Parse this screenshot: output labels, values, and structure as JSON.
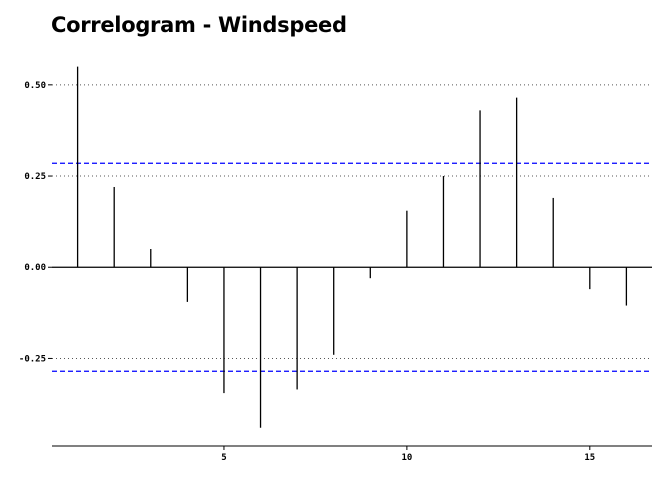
{
  "chart_data": {
    "type": "bar",
    "title": "Correlogram - Windspeed",
    "xlabel": "",
    "ylabel": "",
    "lags": [
      1,
      2,
      3,
      4,
      5,
      6,
      7,
      8,
      9,
      10,
      11,
      12,
      13,
      14,
      15,
      16
    ],
    "values": [
      0.55,
      0.22,
      0.05,
      -0.095,
      -0.345,
      -0.44,
      -0.335,
      -0.24,
      -0.03,
      0.155,
      0.25,
      0.43,
      0.465,
      0.19,
      -0.06,
      -0.105
    ],
    "confidence_band": 0.285,
    "xlim": [
      0.3,
      16.7
    ],
    "ylim": [
      -0.49,
      0.59
    ],
    "x_ticks": [
      5,
      10,
      15
    ],
    "y_ticks": [
      0.5,
      0.25,
      0.0,
      -0.25
    ],
    "y_tick_labels": [
      "0.50",
      "0.25",
      "0.00",
      "-0.25"
    ],
    "grid": "horizontal dotted",
    "colors": {
      "bars": "#000000",
      "band": "#0000ff",
      "grid": "#555555"
    }
  }
}
